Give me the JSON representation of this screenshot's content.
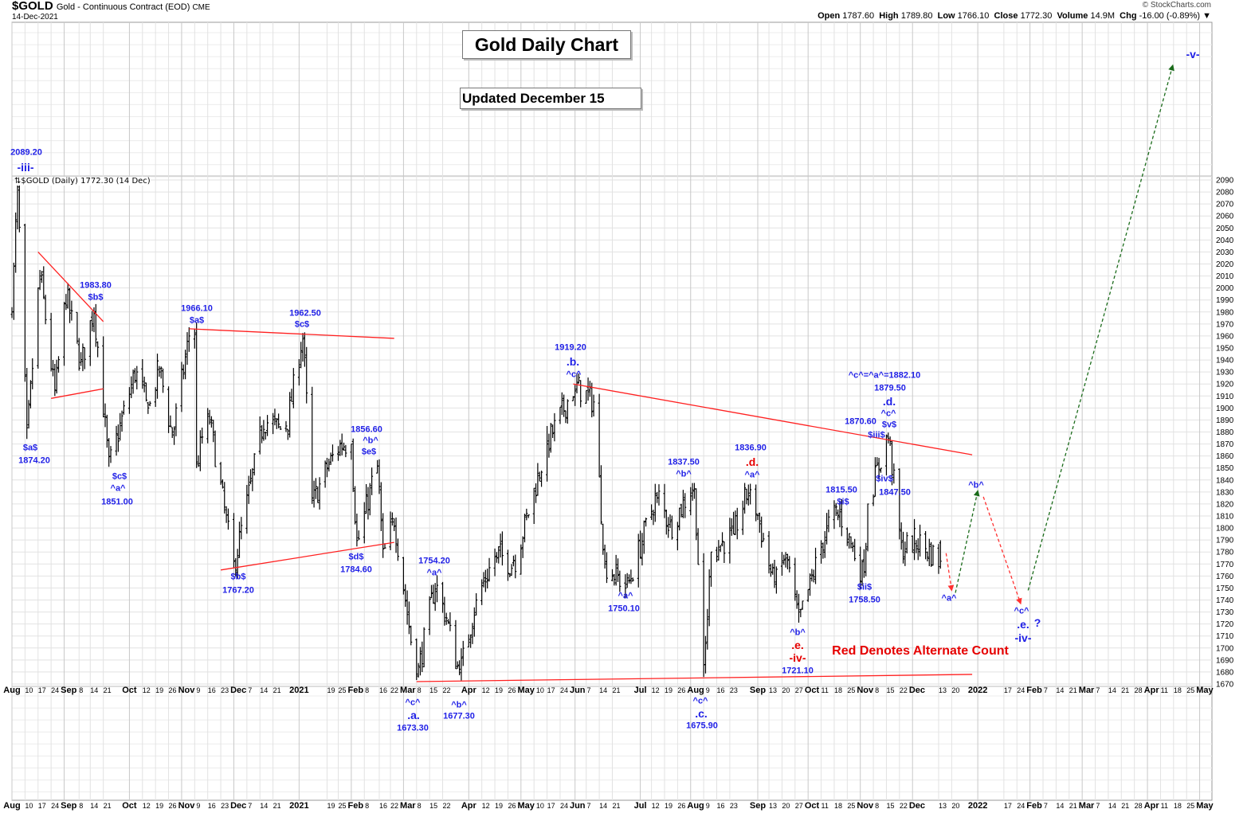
{
  "header": {
    "symbol": "$GOLD",
    "description": "Gold - Continuous Contract (EOD)",
    "exchange": "CME",
    "date": "14-Dec-2021",
    "source": "© StockCharts.com",
    "open_label": "Open",
    "open": "1787.60",
    "high_label": "High",
    "high": "1789.80",
    "low_label": "Low",
    "low": "1766.10",
    "close_label": "Close",
    "close": "1772.30",
    "volume_label": "Volume",
    "volume": "14.9M",
    "chg_label": "Chg",
    "chg": "-16.00 (-0.89%)"
  },
  "titles": {
    "main": "Gold Daily Chart",
    "updated": "Updated December 15"
  },
  "legend": "$GOLD (Daily) 1772.30 (14 Dec)",
  "colors": {
    "bars": "#000000",
    "annotation": "#1f1fe6",
    "alternate": "#e60000",
    "trendline": "#ff2020",
    "projection_up": "#1a6b1a",
    "projection_down": "#ff3030"
  },
  "annotations": [
    "2089.20",
    "-iii-",
    "$a$",
    "1874.20",
    "1983.80",
    "$b$",
    "$c$",
    "^a^",
    "1851.00",
    "1966.10",
    "$a$",
    "1962.50",
    "$c$",
    "$b$",
    "1767.20",
    "1856.60",
    "^b^",
    "$e$",
    "$d$",
    "1784.60",
    "1754.20",
    "^a^",
    "^c^",
    ".a.",
    "1673.30",
    "^b^",
    "1677.30",
    "1919.20",
    ".b.",
    "^c^",
    "^a^",
    "1750.10",
    "1837.50",
    "^b^",
    "1836.90",
    ".d.",
    "^a^",
    "^c^",
    ".c.",
    "1675.90",
    "^b^",
    ".e.",
    "-iv-",
    "1721.10",
    "1815.50",
    "$i$",
    "$ii$",
    "1758.50",
    "1870.60",
    "$iii$",
    "^c^=^a^=1882.10",
    "1879.50",
    ".d.",
    "^c^",
    "$v$",
    "$iv$",
    "1847.50",
    "^b^",
    "^a^",
    "^c^",
    ".e.",
    "?",
    "-iv-",
    "-v-",
    "Red Denotes Alternate Count"
  ],
  "chart_data": {
    "type": "ohlc",
    "title": "Gold Daily Chart",
    "ylim": [
      1670,
      2090
    ],
    "ytick_step": 10,
    "xlim": [
      "2020-08-03",
      "2022-05-02"
    ],
    "grid": true,
    "last_bar": {
      "date": "2021-12-14",
      "open": 1787.6,
      "high": 1789.8,
      "low": 1766.1,
      "close": 1772.3
    },
    "swing_points": [
      [
        "2020-08-03",
        1975
      ],
      [
        "2020-08-06",
        2089.2
      ],
      [
        "2020-08-11",
        1874.2
      ],
      [
        "2020-08-18",
        2015
      ],
      [
        "2020-08-26",
        1910
      ],
      [
        "2020-09-01",
        1995
      ],
      [
        "2020-09-09",
        1935
      ],
      [
        "2020-09-16",
        1983.8
      ],
      [
        "2020-09-24",
        1851
      ],
      [
        "2020-10-09",
        1935
      ],
      [
        "2020-10-15",
        1895
      ],
      [
        "2020-10-21",
        1935
      ],
      [
        "2020-10-28",
        1875
      ],
      [
        "2020-11-06",
        1960
      ],
      [
        "2020-11-09",
        1966.1
      ],
      [
        "2020-11-10",
        1850
      ],
      [
        "2020-11-16",
        1900
      ],
      [
        "2020-11-30",
        1767.2
      ],
      [
        "2020-12-16",
        1890
      ],
      [
        "2020-12-28",
        1880
      ],
      [
        "2021-01-06",
        1962.5
      ],
      [
        "2021-01-11",
        1820
      ],
      [
        "2021-01-19",
        1850
      ],
      [
        "2021-01-26",
        1870
      ],
      [
        "2021-02-01",
        1870
      ],
      [
        "2021-02-04",
        1784.6
      ],
      [
        "2021-02-15",
        1856.6
      ],
      [
        "2021-02-18",
        1775
      ],
      [
        "2021-02-24",
        1808
      ],
      [
        "2021-03-08",
        1673.3
      ],
      [
        "2021-03-18",
        1754.2
      ],
      [
        "2021-03-24",
        1725
      ],
      [
        "2021-03-31",
        1677.3
      ],
      [
        "2021-04-09",
        1740
      ],
      [
        "2021-04-20",
        1780
      ],
      [
        "2021-04-29",
        1768
      ],
      [
        "2021-05-17",
        1870
      ],
      [
        "2021-06-01",
        1919.2
      ],
      [
        "2021-06-11",
        1905
      ],
      [
        "2021-06-17",
        1770
      ],
      [
        "2021-06-29",
        1750.1
      ],
      [
        "2021-07-15",
        1830
      ],
      [
        "2021-07-22",
        1800
      ],
      [
        "2021-08-04",
        1837.5
      ],
      [
        "2021-08-09",
        1675.9
      ],
      [
        "2021-08-13",
        1780
      ],
      [
        "2021-08-25",
        1795
      ],
      [
        "2021-09-03",
        1836.9
      ],
      [
        "2021-09-16",
        1750
      ],
      [
        "2021-09-22",
        1780
      ],
      [
        "2021-09-29",
        1721.1
      ],
      [
        "2021-10-14",
        1800
      ],
      [
        "2021-10-20",
        1815.5
      ],
      [
        "2021-11-03",
        1758.5
      ],
      [
        "2021-11-05",
        1820
      ],
      [
        "2021-11-16",
        1879.5
      ],
      [
        "2021-11-23",
        1782
      ],
      [
        "2021-12-01",
        1790
      ],
      [
        "2021-12-14",
        1772.3
      ]
    ],
    "trendlines": [
      [
        [
          "2020-08-17",
          2030
        ],
        [
          "2020-09-21",
          1972
        ]
      ],
      [
        [
          "2020-08-24",
          1908
        ],
        [
          "2020-09-21",
          1916
        ]
      ],
      [
        [
          "2020-11-06",
          1966
        ],
        [
          "2021-02-24",
          1958
        ]
      ],
      [
        [
          "2020-11-23",
          1765
        ],
        [
          "2021-02-24",
          1788
        ]
      ],
      [
        [
          "2021-03-08",
          1672
        ],
        [
          "2021-12-31",
          1678
        ]
      ],
      [
        [
          "2021-05-31",
          1920
        ],
        [
          "2021-12-31",
          1861
        ]
      ]
    ],
    "projections": [
      {
        "dir": "down",
        "from": [
          "2021-12-17",
          1779
        ],
        "to": [
          "2021-12-20",
          1748
        ]
      },
      {
        "dir": "up",
        "from": [
          "2021-12-22",
          1746
        ],
        "to": [
          "2022-01-03",
          1831
        ]
      },
      {
        "dir": "down",
        "from": [
          "2022-01-06",
          1826
        ],
        "to": [
          "2022-01-26",
          1737
        ]
      },
      {
        "dir": "up",
        "from": [
          "2022-01-30",
          1748
        ],
        "to": [
          "2022-04-29",
          2250
        ]
      }
    ],
    "xticks": [
      [
        "2020-08-03",
        "Aug",
        1
      ],
      [
        "2020-08-10",
        "10",
        0
      ],
      [
        "2020-08-17",
        "17",
        0
      ],
      [
        "2020-08-24",
        "24",
        0
      ],
      [
        "2020-08-31",
        "Sep",
        1
      ],
      [
        "2020-09-08",
        "8",
        0
      ],
      [
        "2020-09-14",
        "14",
        0
      ],
      [
        "2020-09-21",
        "21",
        0
      ],
      [
        "2020-10-05",
        "Oct",
        1
      ],
      [
        "2020-10-12",
        "12",
        0
      ],
      [
        "2020-10-19",
        "19",
        0
      ],
      [
        "2020-10-26",
        "26",
        0
      ],
      [
        "2020-11-02",
        "Nov",
        1
      ],
      [
        "2020-11-09",
        "9",
        0
      ],
      [
        "2020-11-16",
        "16",
        0
      ],
      [
        "2020-11-23",
        "23",
        0
      ],
      [
        "2020-11-30",
        "Dec",
        1
      ],
      [
        "2020-12-07",
        "7",
        0
      ],
      [
        "2020-12-14",
        "14",
        0
      ],
      [
        "2020-12-21",
        "21",
        0
      ],
      [
        "2021-01-04",
        "2021",
        1
      ],
      [
        "2021-01-19",
        "19",
        0
      ],
      [
        "2021-01-25",
        "25",
        0
      ],
      [
        "2021-02-01",
        "Feb",
        1
      ],
      [
        "2021-02-08",
        "8",
        0
      ],
      [
        "2021-02-16",
        "16",
        0
      ],
      [
        "2021-02-22",
        "22",
        0
      ],
      [
        "2021-03-01",
        "Mar",
        1
      ],
      [
        "2021-03-08",
        "8",
        0
      ],
      [
        "2021-03-15",
        "15",
        0
      ],
      [
        "2021-03-22",
        "22",
        0
      ],
      [
        "2021-04-05",
        "Apr",
        1
      ],
      [
        "2021-04-12",
        "12",
        0
      ],
      [
        "2021-04-19",
        "19",
        0
      ],
      [
        "2021-04-26",
        "26",
        0
      ],
      [
        "2021-05-03",
        "May",
        1
      ],
      [
        "2021-05-10",
        "10",
        0
      ],
      [
        "2021-05-17",
        "17",
        0
      ],
      [
        "2021-05-24",
        "24",
        0
      ],
      [
        "2021-06-01",
        "Jun",
        1
      ],
      [
        "2021-06-07",
        "7",
        0
      ],
      [
        "2021-06-14",
        "14",
        0
      ],
      [
        "2021-06-21",
        "21",
        0
      ],
      [
        "2021-07-06",
        "Jul",
        1
      ],
      [
        "2021-07-12",
        "12",
        0
      ],
      [
        "2021-07-19",
        "19",
        0
      ],
      [
        "2021-07-26",
        "26",
        0
      ],
      [
        "2021-08-02",
        "Aug",
        1
      ],
      [
        "2021-08-09",
        "9",
        0
      ],
      [
        "2021-08-16",
        "16",
        0
      ],
      [
        "2021-08-23",
        "23",
        0
      ],
      [
        "2021-09-07",
        "Sep",
        1
      ],
      [
        "2021-09-13",
        "13",
        0
      ],
      [
        "2021-09-20",
        "20",
        0
      ],
      [
        "2021-09-27",
        "27",
        0
      ],
      [
        "2021-10-04",
        "Oct",
        1
      ],
      [
        "2021-10-11",
        "11",
        0
      ],
      [
        "2021-10-18",
        "18",
        0
      ],
      [
        "2021-10-25",
        "25",
        0
      ],
      [
        "2021-11-01",
        "Nov",
        1
      ],
      [
        "2021-11-08",
        "8",
        0
      ],
      [
        "2021-11-15",
        "15",
        0
      ],
      [
        "2021-11-22",
        "22",
        0
      ],
      [
        "2021-11-29",
        "Dec",
        1
      ],
      [
        "2021-12-13",
        "13",
        0
      ],
      [
        "2021-12-20",
        "20",
        0
      ],
      [
        "2022-01-03",
        "2022",
        1
      ],
      [
        "2022-01-17",
        "17",
        0
      ],
      [
        "2022-01-24",
        "24",
        0
      ],
      [
        "2022-01-31",
        "Feb",
        1
      ],
      [
        "2022-02-07",
        "7",
        0
      ],
      [
        "2022-02-14",
        "14",
        0
      ],
      [
        "2022-02-21",
        "21",
        0
      ],
      [
        "2022-02-28",
        "Mar",
        1
      ],
      [
        "2022-03-07",
        "7",
        0
      ],
      [
        "2022-03-14",
        "14",
        0
      ],
      [
        "2022-03-21",
        "21",
        0
      ],
      [
        "2022-03-28",
        "28",
        0
      ],
      [
        "2022-04-04",
        "Apr",
        1
      ],
      [
        "2022-04-11",
        "11",
        0
      ],
      [
        "2022-04-18",
        "18",
        0
      ],
      [
        "2022-04-25",
        "25",
        0
      ],
      [
        "2022-05-02",
        "May",
        1
      ]
    ]
  }
}
